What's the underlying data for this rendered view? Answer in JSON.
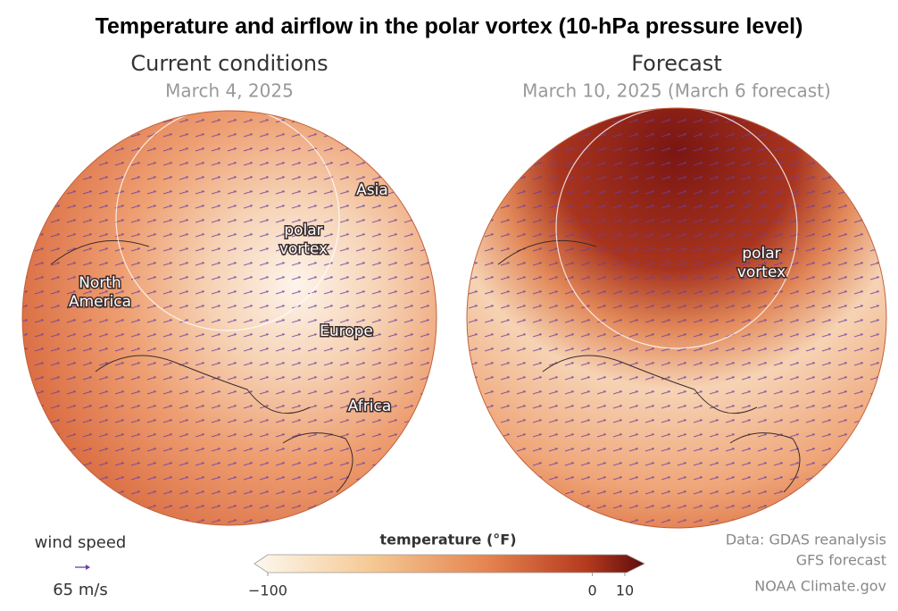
{
  "title": "Temperature and airflow in the polar vortex (10-hPa pressure level)",
  "panels": [
    {
      "title": "Current conditions",
      "subtitle": "March 4, 2025",
      "labels": [
        [
          "Asia"
        ],
        [
          "polar",
          "vortex"
        ],
        [
          "North",
          "America"
        ],
        [
          "Europe"
        ],
        [
          "Africa"
        ]
      ]
    },
    {
      "title": "Forecast",
      "subtitle": "March 10, 2025 (March 6 forecast)",
      "labels": [
        [
          "polar",
          "vortex"
        ]
      ]
    }
  ],
  "wind_legend": {
    "label": "wind speed",
    "value": "65 m/s"
  },
  "colorbar": {
    "title": "temperature (°F)",
    "lim": [
      -100,
      10
    ],
    "ticks": [
      {
        "value": -100,
        "label": "−100"
      },
      0,
      10
    ]
  },
  "credits": [
    "Data: GDAS reanalysis",
    "GFS forecast",
    "NOAA Climate.gov"
  ]
}
